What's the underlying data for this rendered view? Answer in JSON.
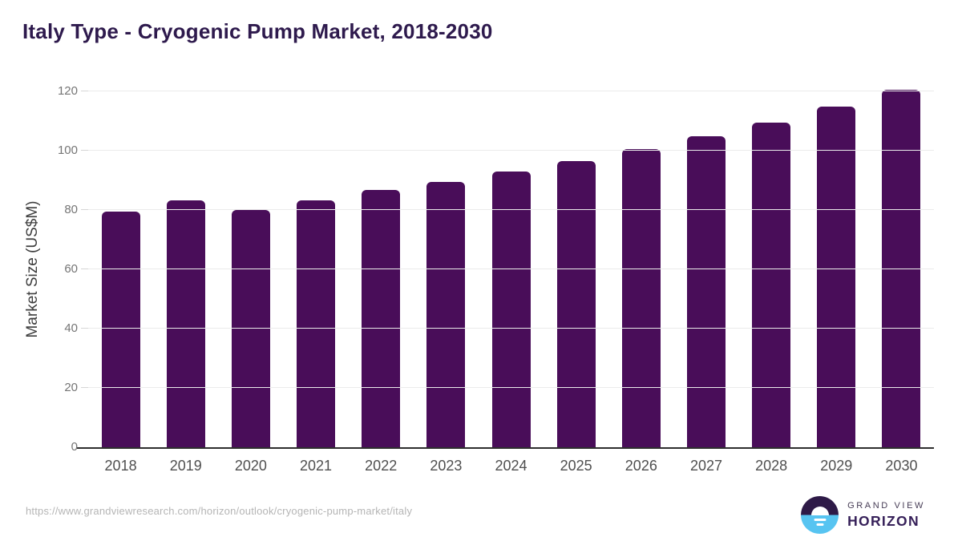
{
  "header": {
    "title": "Italy Type - Cryogenic Pump Market, 2018-2030"
  },
  "chart_data": {
    "type": "bar",
    "title": "Italy Type - Cryogenic Pump Market, 2018-2030",
    "categories": [
      "2018",
      "2019",
      "2020",
      "2021",
      "2022",
      "2023",
      "2024",
      "2025",
      "2026",
      "2027",
      "2028",
      "2029",
      "2030"
    ],
    "values": [
      79.5,
      83.3,
      80.0,
      83.2,
      86.8,
      89.4,
      93.1,
      96.5,
      100.5,
      104.9,
      109.5,
      114.8,
      120.5
    ],
    "xlabel": "",
    "ylabel": "Market Size (US$M)",
    "ylim": [
      0,
      120
    ],
    "yticks": [
      0,
      20,
      40,
      60,
      80,
      100,
      120
    ],
    "grid": true,
    "legend": false,
    "bar_color": "#490d59"
  },
  "footer": {
    "source_url": "https://www.grandviewresearch.com/horizon/outlook/cryogenic-pump-market/italy",
    "logo": {
      "line1": "GRAND VIEW",
      "line2": "HORIZON"
    }
  },
  "colors": {
    "title": "#2e1a4d",
    "bar": "#490d59",
    "gridline": "#ebebeb",
    "axis_line": "#2e2e2e",
    "y_tick_label": "#757575",
    "x_tick_label": "#4f4f4f",
    "axis_title": "#3d3d3d",
    "source_url": "#b5b5b5",
    "logo_blue": "#57c4f1",
    "logo_dark_purple": "#2e1a47"
  }
}
